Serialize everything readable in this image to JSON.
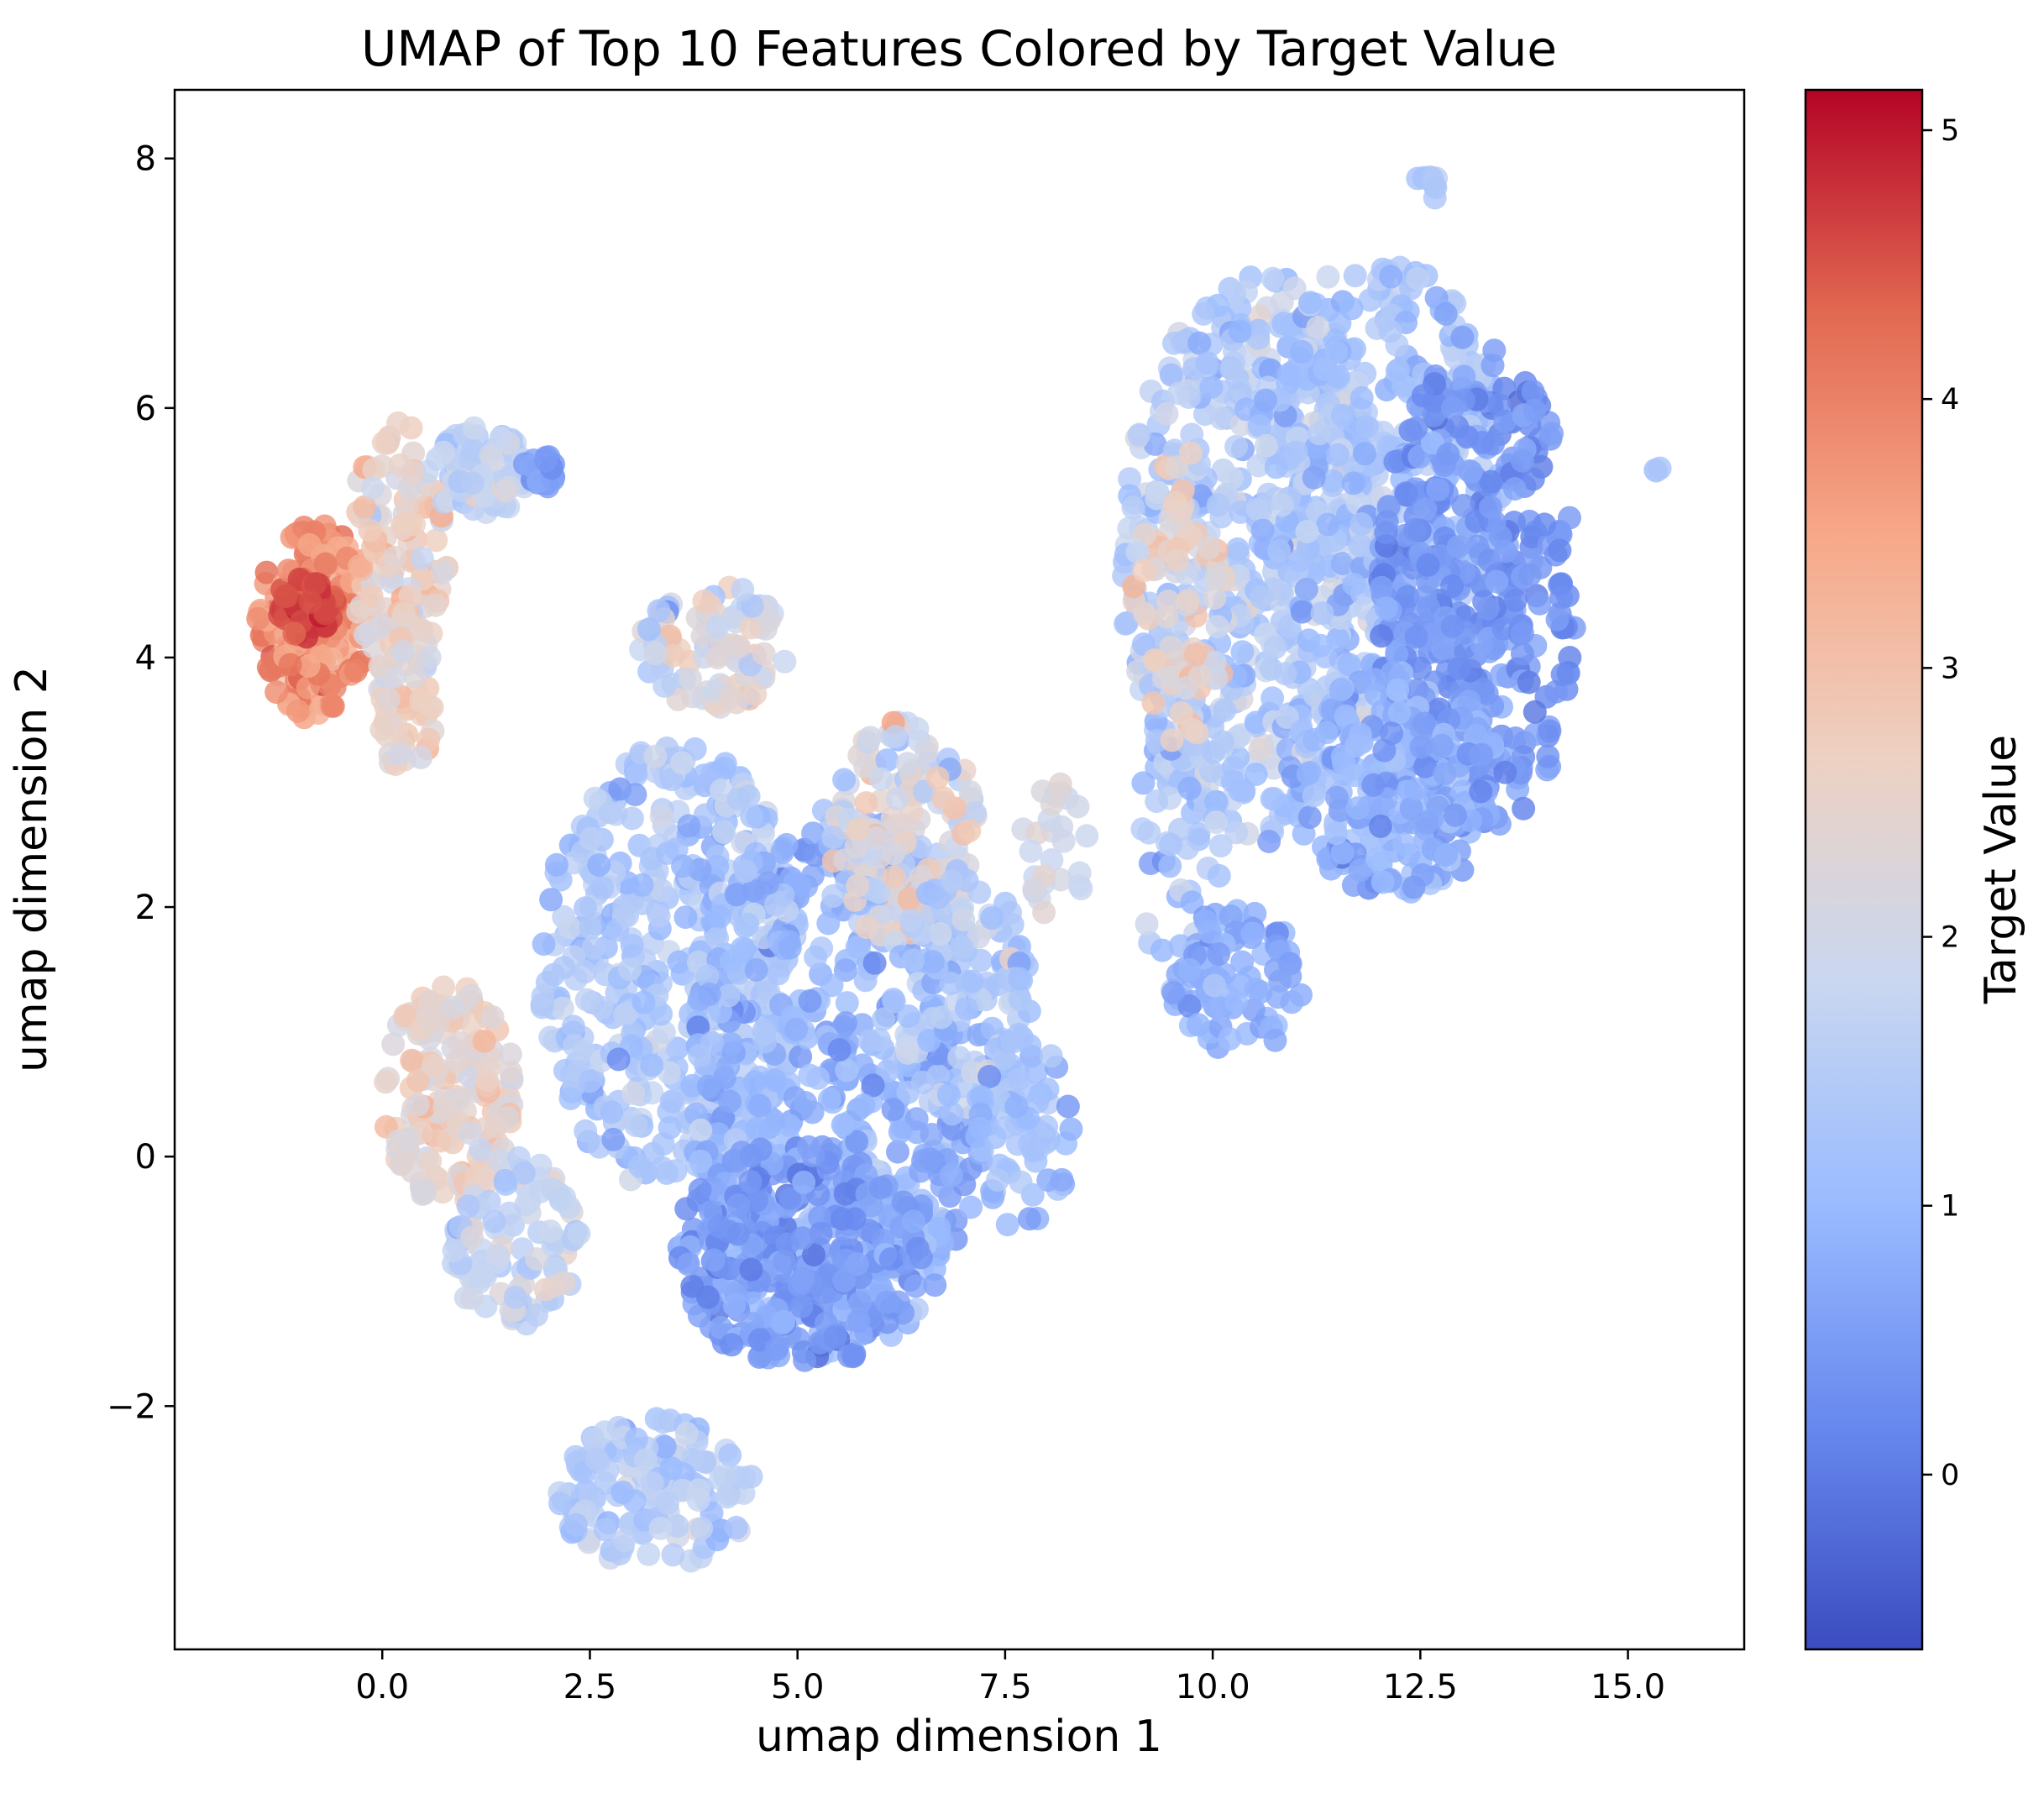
{
  "chart_data": {
    "type": "scatter",
    "title": "UMAP of Top 10 Features Colored by Target Value",
    "xlabel": "umap dimension 1",
    "ylabel": "umap dimension 2",
    "xlim": [
      -2.5,
      16.4
    ],
    "ylim": [
      -3.95,
      8.55
    ],
    "xticks": [
      0.0,
      2.5,
      5.0,
      7.5,
      10.0,
      12.5,
      15.0
    ],
    "xtick_labels": [
      "0.0",
      "2.5",
      "5.0",
      "7.5",
      "10.0",
      "12.5",
      "15.0"
    ],
    "yticks": [
      -2,
      0,
      2,
      4,
      6,
      8
    ],
    "ytick_labels": [
      "−2",
      "0",
      "2",
      "4",
      "6",
      "8"
    ],
    "grid": false,
    "colormap": "coolwarm",
    "colorbar": {
      "label": "Target Value",
      "range": [
        -0.65,
        5.15
      ],
      "ticks": [
        0,
        1,
        2,
        3,
        4,
        5
      ],
      "tick_labels": [
        "0",
        "1",
        "2",
        "3",
        "4",
        "5"
      ],
      "colors": [
        "#3b4cc0",
        "#6788ee",
        "#9abbff",
        "#c9d7f0",
        "#edd1c2",
        "#f7a889",
        "#e26952",
        "#b40426"
      ]
    },
    "clusters": [
      {
        "cx": -0.8,
        "cy": 4.3,
        "rx": 0.7,
        "ry": 0.8,
        "value": 3.8,
        "spread": 0.6,
        "n": 160
      },
      {
        "cx": -0.9,
        "cy": 4.4,
        "rx": 0.35,
        "ry": 0.25,
        "value": 4.6,
        "spread": 0.3,
        "n": 50
      },
      {
        "cx": 0.2,
        "cy": 4.9,
        "rx": 0.6,
        "ry": 1.0,
        "value": 2.6,
        "spread": 0.7,
        "n": 110
      },
      {
        "cx": 1.2,
        "cy": 5.5,
        "rx": 0.6,
        "ry": 0.35,
        "value": 1.6,
        "spread": 0.6,
        "n": 80
      },
      {
        "cx": 1.9,
        "cy": 5.5,
        "rx": 0.2,
        "ry": 0.15,
        "value": 0.4,
        "spread": 0.3,
        "n": 20
      },
      {
        "cx": 0.3,
        "cy": 3.7,
        "rx": 0.35,
        "ry": 0.7,
        "value": 2.5,
        "spread": 0.6,
        "n": 60
      },
      {
        "cx": 4.0,
        "cy": 4.1,
        "rx": 0.9,
        "ry": 0.5,
        "value": 2.1,
        "spread": 0.8,
        "n": 90
      },
      {
        "cx": 3.5,
        "cy": 1.5,
        "rx": 1.6,
        "ry": 1.8,
        "value": 1.3,
        "spread": 0.6,
        "n": 450
      },
      {
        "cx": 5.5,
        "cy": 0.6,
        "rx": 1.8,
        "ry": 2.2,
        "value": 0.9,
        "spread": 0.6,
        "n": 550
      },
      {
        "cx": 5.0,
        "cy": -0.8,
        "rx": 1.5,
        "ry": 0.9,
        "value": 0.5,
        "spread": 0.5,
        "n": 300
      },
      {
        "cx": 6.3,
        "cy": 2.6,
        "rx": 0.9,
        "ry": 0.9,
        "value": 2.2,
        "spread": 0.9,
        "n": 150
      },
      {
        "cx": 7.0,
        "cy": 1.3,
        "rx": 0.8,
        "ry": 1.0,
        "value": 1.4,
        "spread": 0.6,
        "n": 120
      },
      {
        "cx": 7.7,
        "cy": 0.2,
        "rx": 0.6,
        "ry": 0.8,
        "value": 1.1,
        "spread": 0.5,
        "n": 70
      },
      {
        "cx": 0.8,
        "cy": 0.5,
        "rx": 0.8,
        "ry": 0.9,
        "value": 2.5,
        "spread": 0.6,
        "n": 170
      },
      {
        "cx": 1.6,
        "cy": -0.7,
        "rx": 0.8,
        "ry": 0.7,
        "value": 1.8,
        "spread": 0.6,
        "n": 110
      },
      {
        "cx": 3.3,
        "cy": -2.7,
        "rx": 1.2,
        "ry": 0.6,
        "value": 1.5,
        "spread": 0.6,
        "n": 140
      },
      {
        "cx": 8.1,
        "cy": 2.5,
        "rx": 0.4,
        "ry": 0.6,
        "value": 2.0,
        "spread": 0.4,
        "n": 30
      },
      {
        "cx": 9.6,
        "cy": 2.5,
        "rx": 0.5,
        "ry": 1.2,
        "value": 1.3,
        "spread": 0.6,
        "n": 60
      },
      {
        "cx": 10.3,
        "cy": 1.4,
        "rx": 0.8,
        "ry": 0.6,
        "value": 0.8,
        "spread": 0.4,
        "n": 90
      },
      {
        "cx": 10.5,
        "cy": 4.8,
        "rx": 1.6,
        "ry": 2.3,
        "value": 1.4,
        "spread": 0.7,
        "n": 550
      },
      {
        "cx": 12.0,
        "cy": 5.5,
        "rx": 1.5,
        "ry": 1.7,
        "value": 1.2,
        "spread": 0.6,
        "n": 350
      },
      {
        "cx": 13.2,
        "cy": 4.5,
        "rx": 1.2,
        "ry": 2.0,
        "value": 0.4,
        "spread": 0.4,
        "n": 380
      },
      {
        "cx": 12.2,
        "cy": 3.0,
        "rx": 1.3,
        "ry": 0.9,
        "value": 0.8,
        "spread": 0.5,
        "n": 230
      },
      {
        "cx": 9.6,
        "cy": 4.5,
        "rx": 0.6,
        "ry": 1.2,
        "value": 2.6,
        "spread": 0.7,
        "n": 70
      },
      {
        "cx": 12.6,
        "cy": 7.8,
        "rx": 0.15,
        "ry": 0.15,
        "value": 1.4,
        "spread": 0.2,
        "n": 8
      },
      {
        "cx": 15.4,
        "cy": 5.5,
        "rx": 0.08,
        "ry": 0.04,
        "value": 1.3,
        "spread": 0.1,
        "n": 3
      }
    ]
  }
}
